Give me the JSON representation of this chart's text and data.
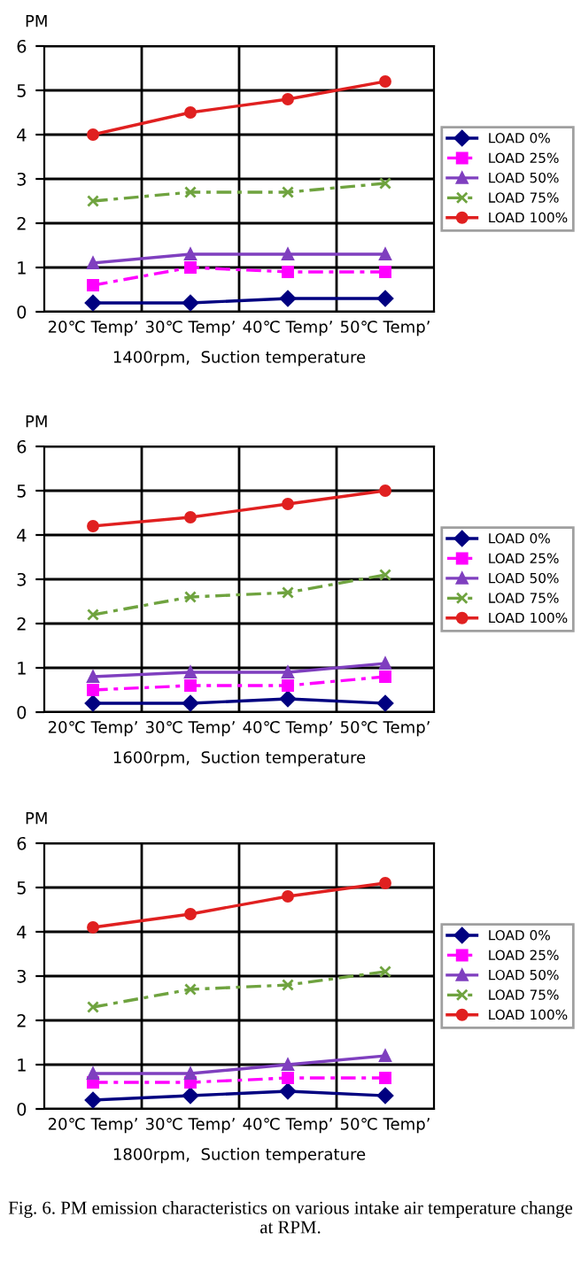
{
  "chart_data": [
    {
      "type": "line",
      "ylabel": "PM",
      "xlabel": "1400rpm,  Suction temperature",
      "categories": [
        "20℃ Temp’",
        "30℃ Temp’",
        "40℃ Temp’",
        "50℃ Temp’"
      ],
      "ylim": [
        0,
        6
      ],
      "yticks": [
        0,
        1,
        2,
        3,
        4,
        5,
        6
      ],
      "grid": true,
      "legend": "right",
      "series": [
        {
          "name": "LOAD 0%",
          "color": "#000080",
          "marker": "diamond",
          "line_style": "solid",
          "values": [
            0.2,
            0.2,
            0.3,
            0.3
          ]
        },
        {
          "name": "LOAD 25%",
          "color": "#ff00ff",
          "marker": "square",
          "line_style": "dashed",
          "values": [
            0.6,
            1.0,
            0.9,
            0.9
          ]
        },
        {
          "name": "LOAD 50%",
          "color": "#7f3fbf",
          "marker": "triangle",
          "line_style": "solid",
          "values": [
            1.1,
            1.3,
            1.3,
            1.3
          ]
        },
        {
          "name": "LOAD 75%",
          "color": "#6fa33f",
          "marker": "cross",
          "line_style": "dashed",
          "values": [
            2.5,
            2.7,
            2.7,
            2.9
          ]
        },
        {
          "name": "LOAD 100%",
          "color": "#e02020",
          "marker": "circle",
          "line_style": "solid",
          "values": [
            4.0,
            4.5,
            4.8,
            5.2
          ]
        }
      ]
    },
    {
      "type": "line",
      "ylabel": "PM",
      "xlabel": "1600rpm,  Suction temperature",
      "categories": [
        "20℃ Temp’",
        "30℃ Temp’",
        "40℃ Temp’",
        "50℃ Temp’"
      ],
      "ylim": [
        0,
        6
      ],
      "yticks": [
        0,
        1,
        2,
        3,
        4,
        5,
        6
      ],
      "grid": true,
      "legend": "right",
      "series": [
        {
          "name": "LOAD 0%",
          "color": "#000080",
          "marker": "diamond",
          "line_style": "solid",
          "values": [
            0.2,
            0.2,
            0.3,
            0.2
          ]
        },
        {
          "name": "LOAD 25%",
          "color": "#ff00ff",
          "marker": "square",
          "line_style": "dashed",
          "values": [
            0.5,
            0.6,
            0.6,
            0.8
          ]
        },
        {
          "name": "LOAD 50%",
          "color": "#7f3fbf",
          "marker": "triangle",
          "line_style": "solid",
          "values": [
            0.8,
            0.9,
            0.9,
            1.1
          ]
        },
        {
          "name": "LOAD 75%",
          "color": "#6fa33f",
          "marker": "cross",
          "line_style": "dashed",
          "values": [
            2.2,
            2.6,
            2.7,
            3.1
          ]
        },
        {
          "name": "LOAD 100%",
          "color": "#e02020",
          "marker": "circle",
          "line_style": "solid",
          "values": [
            4.2,
            4.4,
            4.7,
            5.0
          ]
        }
      ]
    },
    {
      "type": "line",
      "ylabel": "PM",
      "xlabel": "1800rpm,  Suction temperature",
      "categories": [
        "20℃ Temp’",
        "30℃ Temp’",
        "40℃ Temp’",
        "50℃ Temp’"
      ],
      "ylim": [
        0,
        6
      ],
      "yticks": [
        0,
        1,
        2,
        3,
        4,
        5,
        6
      ],
      "grid": true,
      "legend": "right",
      "annotations": [
        "Fig. 6. PM emission characteristics on various intake air temperature change at RPM."
      ],
      "series": [
        {
          "name": "LOAD 0%",
          "color": "#000080",
          "marker": "diamond",
          "line_style": "solid",
          "values": [
            0.2,
            0.3,
            0.4,
            0.3
          ]
        },
        {
          "name": "LOAD 25%",
          "color": "#ff00ff",
          "marker": "square",
          "line_style": "dashed",
          "values": [
            0.6,
            0.6,
            0.7,
            0.7
          ]
        },
        {
          "name": "LOAD 50%",
          "color": "#7f3fbf",
          "marker": "triangle",
          "line_style": "solid",
          "values": [
            0.8,
            0.8,
            1.0,
            1.2
          ]
        },
        {
          "name": "LOAD 75%",
          "color": "#6fa33f",
          "marker": "cross",
          "line_style": "dashed",
          "values": [
            2.3,
            2.7,
            2.8,
            3.1
          ]
        },
        {
          "name": "LOAD 100%",
          "color": "#e02020",
          "marker": "circle",
          "line_style": "solid",
          "values": [
            4.1,
            4.4,
            4.8,
            5.1
          ]
        }
      ]
    }
  ]
}
